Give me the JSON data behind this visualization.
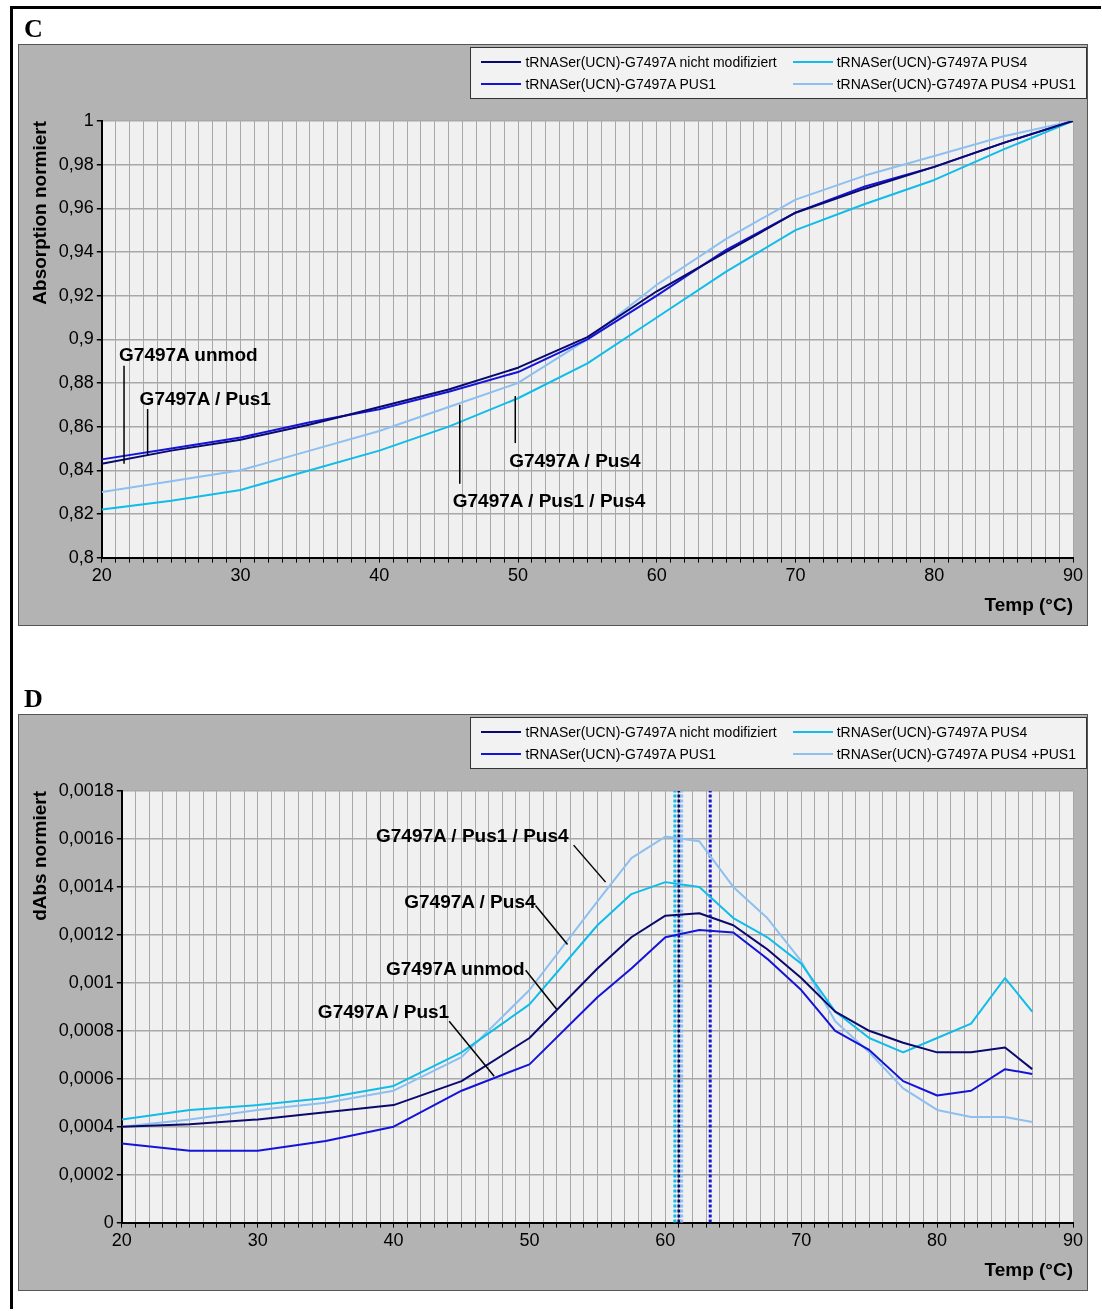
{
  "chart_data": [
    {
      "type": "line",
      "title": "C",
      "xlabel": "Temp (°C)",
      "ylabel": "Absorption normiert",
      "x": [
        20,
        25,
        30,
        35,
        40,
        45,
        50,
        55,
        60,
        65,
        70,
        75,
        80,
        85,
        90
      ],
      "series": [
        {
          "name": "tRNASer(UCN)-G7497A nicht modifiziert",
          "color": "#0a0a6e",
          "values": [
            0.843,
            0.849,
            0.854,
            0.861,
            0.869,
            0.877,
            0.887,
            0.901,
            0.922,
            0.94,
            0.958,
            0.969,
            0.979,
            0.99,
            1
          ]
        },
        {
          "name": "tRNASer(UCN)-G7497A PUS4",
          "color": "#11bce8",
          "values": [
            0.822,
            0.826,
            0.831,
            0.84,
            0.849,
            0.86,
            0.873,
            0.889,
            0.91,
            0.931,
            0.95,
            0.962,
            0.973,
            0.987,
            1
          ]
        },
        {
          "name": "tRNASer(UCN)-G7497A PUS1",
          "color": "#1414d8",
          "values": [
            0.845,
            0.85,
            0.855,
            0.862,
            0.868,
            0.876,
            0.885,
            0.9,
            0.92,
            0.941,
            0.958,
            0.97,
            0.979,
            0.99,
            1
          ]
        },
        {
          "name": "tRNASer(UCN)-G7497A PUS4 +PUS1",
          "color": "#8dc0f0",
          "values": [
            0.83,
            0.835,
            0.84,
            0.849,
            0.858,
            0.869,
            0.88,
            0.9,
            0.925,
            0.946,
            0.964,
            0.975,
            0.984,
            0.993,
            1
          ]
        }
      ],
      "xlim": [
        20,
        90
      ],
      "ylim": [
        0.8,
        1
      ],
      "xticks": [
        20,
        {
          "value": 21,
          "label": null
        },
        {
          "value": 22,
          "label": null
        },
        {
          "value": 23,
          "label": null
        },
        {
          "value": 24,
          "label": null
        },
        {
          "value": 25,
          "label": null
        },
        {
          "value": 26,
          "label": null
        },
        {
          "value": 27,
          "label": null
        },
        {
          "value": 28,
          "label": null
        },
        {
          "value": 29,
          "label": null
        },
        30,
        {
          "value": 31,
          "label": null
        },
        {
          "value": 32,
          "label": null
        },
        {
          "value": 33,
          "label": null
        },
        {
          "value": 34,
          "label": null
        },
        {
          "value": 35,
          "label": null
        },
        {
          "value": 36,
          "label": null
        },
        {
          "value": 37,
          "label": null
        },
        {
          "value": 38,
          "label": null
        },
        {
          "value": 39,
          "label": null
        },
        40,
        {
          "value": 41,
          "label": null
        },
        {
          "value": 42,
          "label": null
        },
        {
          "value": 43,
          "label": null
        },
        {
          "value": 44,
          "label": null
        },
        {
          "value": 45,
          "label": null
        },
        {
          "value": 46,
          "label": null
        },
        {
          "value": 47,
          "label": null
        },
        {
          "value": 48,
          "label": null
        },
        {
          "value": 49,
          "label": null
        },
        50,
        {
          "value": 51,
          "label": null
        },
        {
          "value": 52,
          "label": null
        },
        {
          "value": 53,
          "label": null
        },
        {
          "value": 54,
          "label": null
        },
        {
          "value": 55,
          "label": null
        },
        {
          "value": 56,
          "label": null
        },
        {
          "value": 57,
          "label": null
        },
        {
          "value": 58,
          "label": null
        },
        {
          "value": 59,
          "label": null
        },
        60,
        {
          "value": 61,
          "label": null
        },
        {
          "value": 62,
          "label": null
        },
        {
          "value": 63,
          "label": null
        },
        {
          "value": 64,
          "label": null
        },
        {
          "value": 65,
          "label": null
        },
        {
          "value": 66,
          "label": null
        },
        {
          "value": 67,
          "label": null
        },
        {
          "value": 68,
          "label": null
        },
        {
          "value": 69,
          "label": null
        },
        70,
        {
          "value": 71,
          "label": null
        },
        {
          "value": 72,
          "label": null
        },
        {
          "value": 73,
          "label": null
        },
        {
          "value": 74,
          "label": null
        },
        {
          "value": 75,
          "label": null
        },
        {
          "value": 76,
          "label": null
        },
        {
          "value": 77,
          "label": null
        },
        {
          "value": 78,
          "label": null
        },
        {
          "value": 79,
          "label": null
        },
        80,
        {
          "value": 81,
          "label": null
        },
        {
          "value": 82,
          "label": null
        },
        {
          "value": 83,
          "label": null
        },
        {
          "value": 84,
          "label": null
        },
        {
          "value": 85,
          "label": null
        },
        {
          "value": 86,
          "label": null
        },
        {
          "value": 87,
          "label": null
        },
        {
          "value": 88,
          "label": null
        },
        {
          "value": 89,
          "label": null
        },
        90
      ],
      "yticks": [
        {
          "value": 0.8,
          "label": "0,8"
        },
        {
          "value": 0.82,
          "label": "0,82"
        },
        {
          "value": 0.84,
          "label": "0,84"
        },
        {
          "value": 0.86,
          "label": "0,86"
        },
        {
          "value": 0.88,
          "label": "0,88"
        },
        {
          "value": 0.9,
          "label": "0,9"
        },
        {
          "value": 0.92,
          "label": "0,92"
        },
        {
          "value": 0.94,
          "label": "0,94"
        },
        {
          "value": 0.96,
          "label": "0,96"
        },
        {
          "value": 0.98,
          "label": "0,98"
        },
        1
      ],
      "grid": true,
      "legend": "top right",
      "marker": "none",
      "line_style": "solid",
      "annotations": [
        {
          "text": "G7497A unmod",
          "x": 21.6,
          "y": 0.843
        },
        {
          "text": "G7497A / Pus1",
          "x": 23.3,
          "y": 0.847
        },
        {
          "text": "G7497A / Pus4",
          "x": 49.8,
          "y": 0.874
        },
        {
          "text": "G7497A / Pus1 / Pus4",
          "x": 45.8,
          "y": 0.87
        }
      ]
    },
    {
      "type": "line",
      "title": "D",
      "xlabel": "Temp (°C)",
      "ylabel": "dAbs normiert",
      "x": [
        20,
        25,
        30,
        35,
        40,
        45,
        50,
        55,
        57.5,
        60,
        62.5,
        65,
        67.5,
        70,
        72.5,
        75,
        77.5,
        80,
        82.5,
        85,
        87
      ],
      "series": [
        {
          "name": "tRNASer(UCN)-G7497A nicht modifiziert",
          "color": "#0a0a6e",
          "values": [
            0.0004,
            0.00041,
            0.00043,
            0.00046,
            0.00049,
            0.00059,
            0.00077,
            0.00106,
            0.00119,
            0.00128,
            0.00129,
            0.00124,
            0.00114,
            0.00102,
            0.00088,
            0.0008,
            0.00075,
            0.00071,
            0.00071,
            0.00073,
            0.00064
          ]
        },
        {
          "name": "tRNASer(UCN)-G7497A PUS4",
          "color": "#11bce8",
          "values": [
            0.00043,
            0.00047,
            0.00049,
            0.00052,
            0.00057,
            0.00071,
            0.00091,
            0.00124,
            0.00137,
            0.00142,
            0.0014,
            0.00127,
            0.00119,
            0.00108,
            0.00088,
            0.00077,
            0.00071,
            0.00077,
            0.00083,
            0.00102,
            0.00088
          ]
        },
        {
          "name": "tRNASer(UCN)-G7497A PUS1",
          "color": "#1414d8",
          "values": [
            0.00033,
            0.0003,
            0.0003,
            0.00034,
            0.0004,
            0.00055,
            0.00066,
            0.00094,
            0.00106,
            0.00119,
            0.00122,
            0.00121,
            0.0011,
            0.00097,
            0.0008,
            0.00072,
            0.00059,
            0.00053,
            0.00055,
            0.00064,
            0.00062
          ]
        },
        {
          "name": "tRNASer(UCN)-G7497A PUS4 +PUS1",
          "color": "#8dc0f0",
          "values": [
            0.0004,
            0.00043,
            0.00047,
            0.0005,
            0.00055,
            0.00069,
            0.00097,
            0.00134,
            0.00152,
            0.00161,
            0.00159,
            0.0014,
            0.00127,
            0.00109,
            0.00084,
            0.00071,
            0.00056,
            0.00047,
            0.00044,
            0.00044,
            0.00042
          ]
        }
      ],
      "xlim": [
        20,
        90
      ],
      "ylim": [
        0,
        0.0018
      ],
      "xticks": [
        20,
        {
          "value": 21,
          "label": null
        },
        {
          "value": 22,
          "label": null
        },
        {
          "value": 23,
          "label": null
        },
        {
          "value": 24,
          "label": null
        },
        {
          "value": 25,
          "label": null
        },
        {
          "value": 26,
          "label": null
        },
        {
          "value": 27,
          "label": null
        },
        {
          "value": 28,
          "label": null
        },
        {
          "value": 29,
          "label": null
        },
        30,
        {
          "value": 31,
          "label": null
        },
        {
          "value": 32,
          "label": null
        },
        {
          "value": 33,
          "label": null
        },
        {
          "value": 34,
          "label": null
        },
        {
          "value": 35,
          "label": null
        },
        {
          "value": 36,
          "label": null
        },
        {
          "value": 37,
          "label": null
        },
        {
          "value": 38,
          "label": null
        },
        {
          "value": 39,
          "label": null
        },
        40,
        {
          "value": 41,
          "label": null
        },
        {
          "value": 42,
          "label": null
        },
        {
          "value": 43,
          "label": null
        },
        {
          "value": 44,
          "label": null
        },
        {
          "value": 45,
          "label": null
        },
        {
          "value": 46,
          "label": null
        },
        {
          "value": 47,
          "label": null
        },
        {
          "value": 48,
          "label": null
        },
        {
          "value": 49,
          "label": null
        },
        50,
        {
          "value": 51,
          "label": null
        },
        {
          "value": 52,
          "label": null
        },
        {
          "value": 53,
          "label": null
        },
        {
          "value": 54,
          "label": null
        },
        {
          "value": 55,
          "label": null
        },
        {
          "value": 56,
          "label": null
        },
        {
          "value": 57,
          "label": null
        },
        {
          "value": 58,
          "label": null
        },
        {
          "value": 59,
          "label": null
        },
        60,
        {
          "value": 61,
          "label": null
        },
        {
          "value": 62,
          "label": null
        },
        {
          "value": 63,
          "label": null
        },
        {
          "value": 64,
          "label": null
        },
        {
          "value": 65,
          "label": null
        },
        {
          "value": 66,
          "label": null
        },
        {
          "value": 67,
          "label": null
        },
        {
          "value": 68,
          "label": null
        },
        {
          "value": 69,
          "label": null
        },
        70,
        {
          "value": 71,
          "label": null
        },
        {
          "value": 72,
          "label": null
        },
        {
          "value": 73,
          "label": null
        },
        {
          "value": 74,
          "label": null
        },
        {
          "value": 75,
          "label": null
        },
        {
          "value": 76,
          "label": null
        },
        {
          "value": 77,
          "label": null
        },
        {
          "value": 78,
          "label": null
        },
        {
          "value": 79,
          "label": null
        },
        80,
        {
          "value": 81,
          "label": null
        },
        {
          "value": 82,
          "label": null
        },
        {
          "value": 83,
          "label": null
        },
        {
          "value": 84,
          "label": null
        },
        {
          "value": 85,
          "label": null
        },
        {
          "value": 86,
          "label": null
        },
        {
          "value": 87,
          "label": null
        },
        {
          "value": 88,
          "label": null
        },
        {
          "value": 89,
          "label": null
        },
        90
      ],
      "yticks": [
        0,
        {
          "value": 0.0002,
          "label": "0,0002"
        },
        {
          "value": 0.0004,
          "label": "0,0004"
        },
        {
          "value": 0.0006,
          "label": "0,0006"
        },
        {
          "value": 0.0008,
          "label": "0,0008"
        },
        {
          "value": 0.001,
          "label": "0,001"
        },
        {
          "value": 0.0012,
          "label": "0,0012"
        },
        {
          "value": 0.0014,
          "label": "0,0014"
        },
        {
          "value": 0.0016,
          "label": "0,0016"
        },
        {
          "value": 0.0018,
          "label": "0,0018"
        }
      ],
      "grid": true,
      "legend": "top right",
      "marker": "none",
      "line_style": "solid",
      "ref_lines": [
        {
          "axis": "x",
          "value": 60.7,
          "color": "#11bce8",
          "line_style": "dashed"
        },
        {
          "axis": "x",
          "value": 61,
          "color": "#0a0a6e",
          "line_style": "dashed"
        },
        {
          "axis": "x",
          "value": 61.2,
          "color": "#8dc0f0",
          "line_style": "dashed"
        },
        {
          "axis": "x",
          "value": 63.3,
          "color": "#1414d8",
          "line_style": "dashed"
        }
      ],
      "annotations": [
        {
          "text": "G7497A / Pus1 / Pus4",
          "x": 55.6,
          "y": 0.00142
        },
        {
          "text": "G7497A / Pus4",
          "x": 52.8,
          "y": 0.00116
        },
        {
          "text": "G7497A unmod",
          "x": 52,
          "y": 0.00089
        },
        {
          "text": "G7497A / Pus1",
          "x": 47.4,
          "y": 0.00061
        }
      ]
    }
  ]
}
